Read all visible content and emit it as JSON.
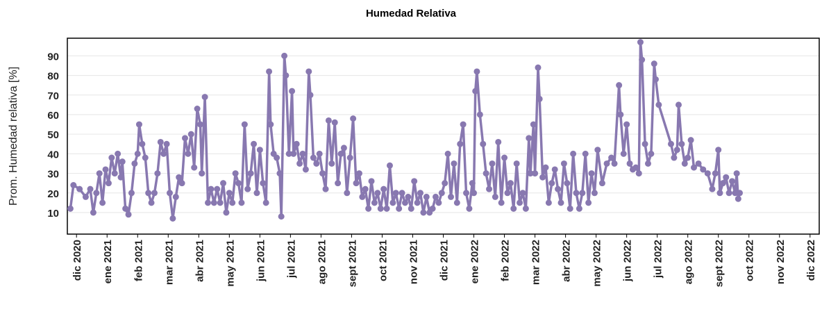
{
  "chart_data": {
    "type": "line",
    "title": "Humedad Relativa",
    "y_label": "Prom. Humedad relativa [%]",
    "x": [
      -0.2,
      -0.1,
      0.1,
      0.3,
      0.45,
      0.55,
      0.65,
      0.75,
      0.85,
      0.95,
      1.05,
      1.15,
      1.25,
      1.35,
      1.45,
      1.5,
      1.6,
      1.7,
      1.8,
      1.9,
      2.0,
      2.05,
      2.15,
      2.25,
      2.35,
      2.45,
      2.55,
      2.65,
      2.75,
      2.85,
      2.95,
      3.05,
      3.15,
      3.25,
      3.35,
      3.45,
      3.55,
      3.65,
      3.75,
      3.85,
      3.95,
      4.05,
      4.1,
      4.2,
      4.3,
      4.4,
      4.5,
      4.6,
      4.7,
      4.8,
      4.9,
      5.0,
      5.1,
      5.2,
      5.3,
      5.4,
      5.5,
      5.6,
      5.7,
      5.8,
      5.9,
      6.0,
      6.1,
      6.2,
      6.3,
      6.35,
      6.45,
      6.55,
      6.65,
      6.7,
      6.8,
      6.85,
      6.95,
      7.05,
      7.1,
      7.2,
      7.3,
      7.4,
      7.5,
      7.6,
      7.65,
      7.75,
      7.85,
      7.95,
      8.05,
      8.15,
      8.25,
      8.35,
      8.45,
      8.55,
      8.65,
      8.75,
      8.85,
      8.95,
      9.05,
      9.15,
      9.25,
      9.35,
      9.45,
      9.55,
      9.65,
      9.75,
      9.85,
      9.95,
      10.05,
      10.15,
      10.25,
      10.35,
      10.45,
      10.55,
      10.65,
      10.75,
      10.85,
      10.95,
      11.05,
      11.15,
      11.25,
      11.35,
      11.45,
      11.55,
      11.65,
      11.75,
      11.85,
      11.95,
      12.05,
      12.15,
      12.25,
      12.35,
      12.45,
      12.55,
      12.65,
      12.75,
      12.85,
      12.95,
      13.0,
      13.05,
      13.1,
      13.2,
      13.3,
      13.4,
      13.5,
      13.6,
      13.7,
      13.8,
      13.9,
      14.0,
      14.1,
      14.2,
      14.3,
      14.4,
      14.5,
      14.6,
      14.7,
      14.8,
      14.85,
      14.95,
      15.0,
      15.1,
      15.15,
      15.25,
      15.35,
      15.45,
      15.55,
      15.65,
      15.75,
      15.85,
      15.95,
      16.05,
      16.15,
      16.25,
      16.35,
      16.45,
      16.55,
      16.65,
      16.75,
      16.85,
      16.95,
      17.05,
      17.2,
      17.35,
      17.5,
      17.6,
      17.75,
      17.8,
      17.9,
      18.0,
      18.1,
      18.2,
      18.3,
      18.4,
      18.45,
      18.5,
      18.6,
      18.7,
      18.8,
      18.9,
      18.95,
      19.05,
      19.45,
      19.55,
      19.65,
      19.7,
      19.8,
      19.9,
      20.0,
      20.1,
      20.2,
      20.35,
      20.5,
      20.65,
      20.8,
      20.9,
      21.0,
      21.05,
      21.15,
      21.25,
      21.35,
      21.45,
      21.55,
      21.6,
      21.65,
      21.7
    ],
    "values": [
      12,
      24,
      22,
      18,
      22,
      10,
      20,
      30,
      15,
      32,
      25,
      38,
      30,
      40,
      28,
      36,
      12,
      9,
      20,
      35,
      40,
      55,
      45,
      38,
      20,
      15,
      20,
      30,
      46,
      40,
      45,
      20,
      7,
      18,
      28,
      25,
      48,
      40,
      50,
      33,
      63,
      55,
      30,
      69,
      15,
      22,
      15,
      22,
      15,
      25,
      10,
      20,
      15,
      30,
      25,
      15,
      55,
      22,
      30,
      45,
      20,
      42,
      25,
      15,
      82,
      55,
      40,
      38,
      30,
      8,
      90,
      80,
      40,
      72,
      40,
      45,
      35,
      40,
      32,
      82,
      70,
      38,
      35,
      40,
      30,
      22,
      57,
      35,
      56,
      25,
      40,
      43,
      20,
      38,
      58,
      25,
      30,
      18,
      22,
      12,
      26,
      15,
      20,
      12,
      22,
      12,
      34,
      15,
      20,
      12,
      20,
      15,
      18,
      12,
      26,
      15,
      20,
      10,
      18,
      10,
      12,
      18,
      15,
      20,
      25,
      40,
      18,
      35,
      15,
      45,
      55,
      20,
      12,
      25,
      20,
      72,
      82,
      60,
      45,
      30,
      22,
      35,
      18,
      46,
      15,
      38,
      20,
      25,
      12,
      35,
      15,
      20,
      12,
      48,
      30,
      55,
      30,
      84,
      68,
      28,
      33,
      15,
      25,
      32,
      22,
      15,
      35,
      25,
      12,
      40,
      20,
      12,
      20,
      40,
      15,
      30,
      20,
      42,
      25,
      35,
      38,
      35,
      75,
      60,
      40,
      55,
      35,
      32,
      33,
      30,
      97,
      88,
      45,
      35,
      40,
      86,
      78,
      65,
      45,
      38,
      42,
      65,
      45,
      35,
      38,
      47,
      33,
      35,
      32,
      30,
      22,
      30,
      42,
      20,
      25,
      28,
      20,
      26,
      20,
      30,
      17,
      20
    ],
    "color": "#8878b0",
    "xlim": [
      -0.3,
      24.3
    ],
    "xticks": [
      {
        "value": 0,
        "label": "dic 2020"
      },
      {
        "value": 1,
        "label": "ene 2021"
      },
      {
        "value": 2,
        "label": "feb 2021"
      },
      {
        "value": 3,
        "label": "mar 2021"
      },
      {
        "value": 4,
        "label": "abr 2021"
      },
      {
        "value": 5,
        "label": "may 2021"
      },
      {
        "value": 6,
        "label": "jun 2021"
      },
      {
        "value": 7,
        "label": "jul 2021"
      },
      {
        "value": 8,
        "label": "ago 2021"
      },
      {
        "value": 9,
        "label": "sept 2021"
      },
      {
        "value": 10,
        "label": "oct 2021"
      },
      {
        "value": 11,
        "label": "nov 2021"
      },
      {
        "value": 12,
        "label": "dic 2021"
      },
      {
        "value": 13,
        "label": "ene 2022"
      },
      {
        "value": 14,
        "label": "feb 2022"
      },
      {
        "value": 15,
        "label": "mar 2022"
      },
      {
        "value": 16,
        "label": "abr 2022"
      },
      {
        "value": 17,
        "label": "may 2022"
      },
      {
        "value": 18,
        "label": "jun 2022"
      },
      {
        "value": 19,
        "label": "jul 2022"
      },
      {
        "value": 20,
        "label": "ago 2022"
      },
      {
        "value": 21,
        "label": "sept 2022"
      },
      {
        "value": 22,
        "label": "oct 2022"
      },
      {
        "value": 23,
        "label": "nov 2022"
      },
      {
        "value": 24,
        "label": "dic 2022"
      }
    ],
    "ylim": [
      -1,
      99
    ],
    "yticks": [
      10,
      20,
      30,
      40,
      50,
      60,
      70,
      80,
      90
    ],
    "grid": true
  }
}
